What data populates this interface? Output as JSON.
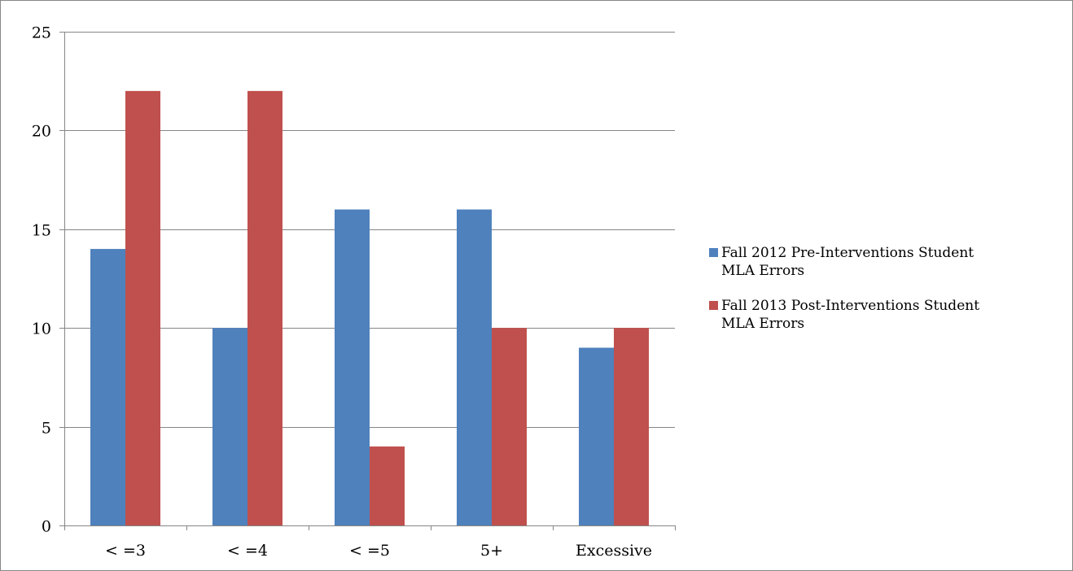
{
  "chart_data": {
    "type": "bar",
    "title": "",
    "xlabel": "",
    "ylabel": "",
    "categories": [
      "<=3",
      "<=4",
      "<=5",
      "5+",
      "Excessive"
    ],
    "category_labels": [
      "< =3",
      "< =4",
      "< =5",
      "5+",
      "Excessive"
    ],
    "ylim": [
      0,
      25
    ],
    "yticks": [
      0,
      5,
      10,
      15,
      20,
      25
    ],
    "ytick_labels": [
      "0",
      "5",
      "10",
      "15",
      "20",
      "25"
    ],
    "grid": true,
    "legend_position": "right",
    "series": [
      {
        "name": "Fall 2012 Pre-Interventions Student MLA Errors",
        "name_lines": [
          "Fall 2012 Pre-Interventions Student",
          "MLA Errors"
        ],
        "color": "#4F81BD",
        "values": [
          14,
          10,
          16,
          16,
          9
        ]
      },
      {
        "name": "Fall 2013 Post-Interventions Student MLA Errors",
        "name_lines": [
          "Fall 2013 Post-Interventions Student",
          "MLA Errors"
        ],
        "color": "#C0504D",
        "values": [
          22,
          22,
          4,
          10,
          10
        ]
      }
    ]
  }
}
